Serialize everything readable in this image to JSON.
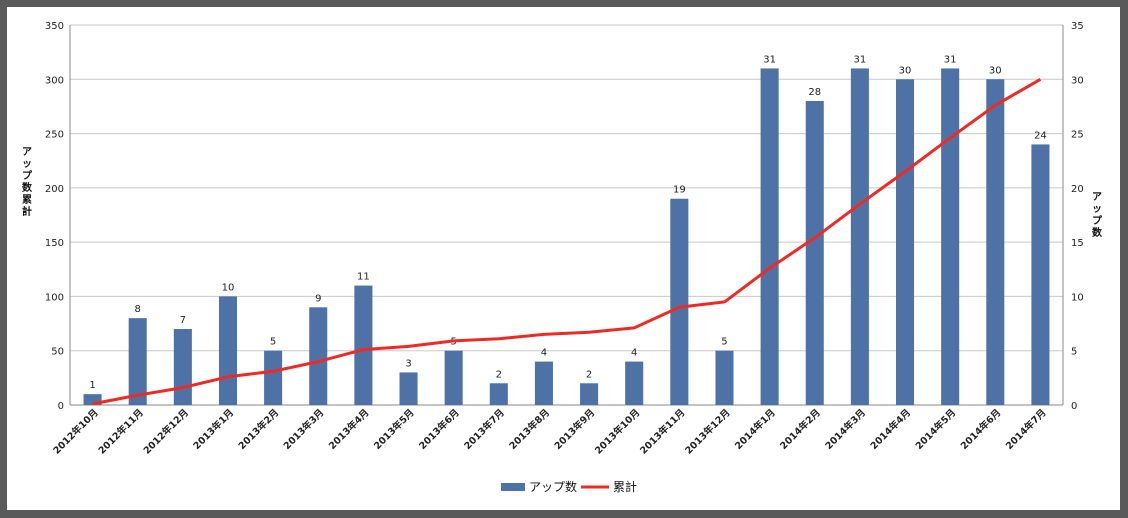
{
  "chart_data": {
    "type": "bar",
    "categories": [
      "2012年10月",
      "2012年11月",
      "2012年12月",
      "2013年1月",
      "2013年2月",
      "2013年3月",
      "2013年4月",
      "2013年5月",
      "2013年6月",
      "2013年7月",
      "2013年8月",
      "2013年9月",
      "2013年10月",
      "2013年11月",
      "2013年12月",
      "2014年1月",
      "2014年2月",
      "2014年3月",
      "2014年4月",
      "2014年5月",
      "2014年6月",
      "2014年7月"
    ],
    "series": [
      {
        "name": "アップ数",
        "type": "bar",
        "axis": "right",
        "color": "#4f72a6",
        "values": [
          1,
          8,
          7,
          10,
          5,
          9,
          11,
          3,
          5,
          2,
          4,
          2,
          4,
          19,
          5,
          31,
          28,
          31,
          30,
          31,
          30,
          24
        ]
      },
      {
        "name": "累計",
        "type": "line",
        "axis": "left",
        "color": "#ee2a24",
        "values": [
          1,
          9,
          16,
          26,
          31,
          40,
          51,
          54,
          59,
          61,
          65,
          67,
          71,
          90,
          95,
          126,
          154,
          185,
          215,
          246,
          276,
          300
        ]
      }
    ],
    "ylabel_left": "アップ数累計",
    "ylabel_right": "アップ数",
    "ylim_left": [
      0,
      350
    ],
    "ylim_right": [
      0,
      35
    ],
    "yticks_left": [
      0,
      50,
      100,
      150,
      200,
      250,
      300,
      350
    ],
    "yticks_right": [
      0,
      5,
      10,
      15,
      20,
      25,
      30,
      35
    ],
    "grid": true,
    "legend": "bottom"
  }
}
